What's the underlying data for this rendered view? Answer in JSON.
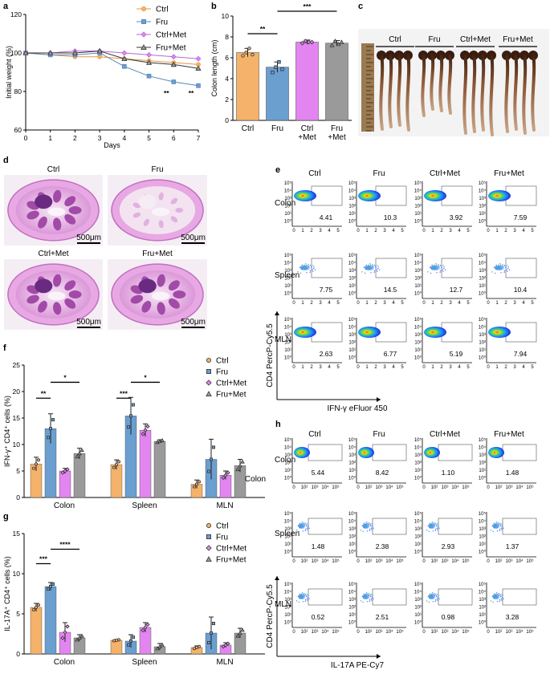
{
  "panel_labels": {
    "a": "a",
    "b": "b",
    "c": "c",
    "d": "d",
    "e": "e",
    "f": "f",
    "g": "g",
    "h": "h"
  },
  "colors": {
    "ctrl": "#f4b26a",
    "fru": "#6a9fd0",
    "ctrl_met": "#e385f0",
    "fru_met": "#9a9a9a",
    "ctrl_line": "#e8963c",
    "fru_line": "#5a86b8",
    "ctrl_met_line": "#b36ad6",
    "fru_met_line": "#333333"
  },
  "legend": [
    "Ctrl",
    "Fru",
    "Ctrl+Met",
    "Fru+Met"
  ],
  "chart_data": [
    {
      "id": "a",
      "type": "line",
      "xlabel": "Days",
      "ylabel": "Initial  weight (%)",
      "x": [
        0,
        1,
        2,
        3,
        4,
        5,
        6,
        7
      ],
      "xlim": [
        0,
        7
      ],
      "ylim": [
        60,
        120
      ],
      "yticks": [
        60,
        80,
        100,
        120
      ],
      "series": [
        {
          "name": "Ctrl",
          "values": [
            100,
            99,
            98,
            98,
            97,
            96,
            95,
            94
          ]
        },
        {
          "name": "Fru",
          "values": [
            100,
            99,
            99,
            100,
            93,
            88,
            85,
            83
          ]
        },
        {
          "name": "Ctrl+Met",
          "values": [
            100,
            100,
            101,
            101,
            100,
            99,
            98,
            97
          ]
        },
        {
          "name": "Fru+Met",
          "values": [
            100,
            100,
            100,
            101,
            97,
            95,
            94,
            92
          ]
        }
      ],
      "annotations": [
        {
          "x": 6,
          "text": "**"
        },
        {
          "x": 7,
          "text": "**"
        }
      ]
    },
    {
      "id": "b",
      "type": "bar",
      "ylabel": "Colon length (cm)",
      "ylim": [
        0,
        10
      ],
      "yticks": [
        0,
        2,
        4,
        6,
        8,
        10
      ],
      "categories": [
        "Ctrl",
        "Fru",
        "Ctrl\n+Met",
        "Fru\n+Met"
      ],
      "values": [
        6.5,
        5.1,
        7.5,
        7.4
      ],
      "errors": [
        0.4,
        0.5,
        0.2,
        0.25
      ],
      "points": [
        [
          6.2,
          6.5,
          6.9,
          6.3
        ],
        [
          4.6,
          5.1,
          5.6,
          4.9
        ],
        [
          7.4,
          7.6,
          7.5,
          7.5
        ],
        [
          7.2,
          7.6,
          7.3,
          7.5
        ]
      ],
      "significance": [
        {
          "from": 0,
          "to": 1,
          "text": "**"
        },
        {
          "from": 1,
          "to": 3,
          "text": "***"
        }
      ]
    },
    {
      "id": "f",
      "type": "bar",
      "ylabel": "IFN-γ⁺ CD4⁺ cells (%)",
      "ylim": [
        0,
        25
      ],
      "yticks": [
        0,
        5,
        10,
        15,
        20,
        25
      ],
      "categories": [
        "Colon",
        "Spleen",
        "MLN"
      ],
      "series": [
        {
          "name": "Ctrl",
          "values": [
            6.3,
            6.2,
            2.5
          ],
          "errors": [
            1.3,
            0.9,
            0.8
          ]
        },
        {
          "name": "Fru",
          "values": [
            13.0,
            15.4,
            7.2
          ],
          "errors": [
            2.8,
            3.5,
            3.8
          ]
        },
        {
          "name": "Ctrl+Met",
          "values": [
            5.0,
            12.7,
            4.2
          ],
          "errors": [
            0.5,
            1.2,
            0.8
          ]
        },
        {
          "name": "Fru+Met",
          "values": [
            8.3,
            10.6,
            6.0
          ],
          "errors": [
            1.0,
            0.3,
            1.2
          ]
        }
      ],
      "significance": [
        {
          "group": 0,
          "from": 0,
          "to": 1,
          "text": "**"
        },
        {
          "group": 0,
          "from": 1,
          "to": 3,
          "text": "*"
        },
        {
          "group": 1,
          "from": 0,
          "to": 1,
          "text": "***"
        },
        {
          "group": 1,
          "from": 1,
          "to": 3,
          "text": "*"
        }
      ]
    },
    {
      "id": "g",
      "type": "bar",
      "ylabel": "IL-17A⁺ CD4⁺ cells (%)",
      "ylim": [
        0,
        15
      ],
      "yticks": [
        0,
        5,
        10,
        15
      ],
      "categories": [
        "Colon",
        "Spleen",
        "MLN"
      ],
      "series": [
        {
          "name": "Ctrl",
          "values": [
            5.8,
            1.7,
            0.8
          ],
          "errors": [
            0.5,
            0.1,
            0.2
          ]
        },
        {
          "name": "Fru",
          "values": [
            8.4,
            1.6,
            2.6
          ],
          "errors": [
            0.5,
            0.8,
            2.0
          ]
        },
        {
          "name": "Ctrl+Met",
          "values": [
            2.7,
            3.3,
            1.1
          ],
          "errors": [
            1.2,
            0.6,
            0.3
          ]
        },
        {
          "name": "Fru+Met",
          "values": [
            2.0,
            0.9,
            2.6
          ],
          "errors": [
            0.4,
            0.4,
            0.6
          ]
        }
      ],
      "significance": [
        {
          "group": 0,
          "from": 0,
          "to": 1,
          "text": "***"
        },
        {
          "group": 0,
          "from": 1,
          "to": 3,
          "text": "****"
        }
      ]
    }
  ],
  "panel_c": {
    "groups": [
      "Ctrl",
      "Fru",
      "Ctrl+Met",
      "Fru+Met"
    ]
  },
  "panel_d": {
    "titles": [
      "Ctrl",
      "Fru",
      "Ctrl+Met",
      "Fru+Met"
    ],
    "scalebar": "500μm"
  },
  "panel_e": {
    "columns": [
      "Ctrl",
      "Fru",
      "Ctrl+Met",
      "Fru+Met"
    ],
    "rows": [
      "Colon",
      "Spleen",
      "MLN"
    ],
    "values": [
      [
        "4.41",
        "10.3",
        "3.92",
        "7.59"
      ],
      [
        "7.75",
        "14.5",
        "12.7",
        "10.4"
      ],
      [
        "2.63",
        "6.77",
        "5.19",
        "7.94"
      ]
    ],
    "ylabel": "CD4 PercP-Cy5.5",
    "xlabel": "IFN-γ eFluor 450"
  },
  "panel_h": {
    "columns": [
      "Ctrl",
      "Fru",
      "Ctrl+Met",
      "Fru+Met"
    ],
    "rows": [
      "Colon",
      "Spleen",
      "MLN"
    ],
    "values": [
      [
        "5.44",
        "8.42",
        "1.10",
        "1.48"
      ],
      [
        "1.48",
        "2.38",
        "2.93",
        "1.37"
      ],
      [
        "0.52",
        "2.51",
        "0.98",
        "3.28"
      ]
    ],
    "ylabel": "CD4 PercP-Cy5.5",
    "xlabel": "IL-17A PE-Cy7"
  }
}
